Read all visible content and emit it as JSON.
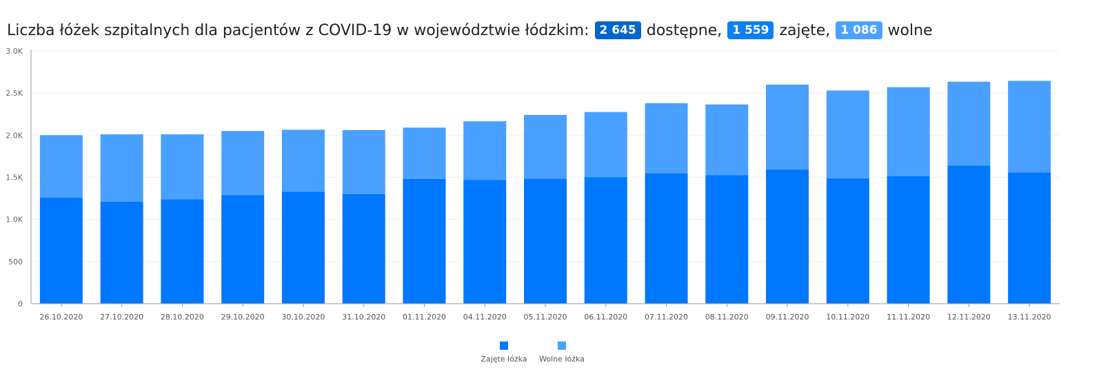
{
  "header": {
    "title_prefix": "Liczba łóżek szpitalnych dla pacjentów z COVID-19 w województwie łódzkim:",
    "available_value": "2 645",
    "available_label": "dostępne,",
    "occupied_value": "1 559",
    "occupied_label": "zajęte,",
    "free_value": "1 086",
    "free_label": "wolne"
  },
  "colors": {
    "occupied": "#0077ff",
    "free": "#49a0ff",
    "available_badge": "#0066cc",
    "occupied_badge": "#0d7ff5",
    "free_badge": "#4aa2ff"
  },
  "chart_data": {
    "type": "bar",
    "stacked": true,
    "categories": [
      "26.10.2020",
      "27.10.2020",
      "28.10.2020",
      "29.10.2020",
      "30.10.2020",
      "31.10.2020",
      "01.11.2020",
      "04.11.2020",
      "05.11.2020",
      "06.11.2020",
      "07.11.2020",
      "08.11.2020",
      "09.11.2020",
      "10.11.2020",
      "11.11.2020",
      "12.11.2020",
      "13.11.2020"
    ],
    "series": [
      {
        "name": "Zajęte łóżka",
        "color": "#0077ff",
        "values": [
          1260,
          1210,
          1240,
          1290,
          1330,
          1300,
          1480,
          1470,
          1485,
          1500,
          1545,
          1525,
          1590,
          1490,
          1515,
          1640,
          1559
        ]
      },
      {
        "name": "Wolne łóżka",
        "color": "#49a0ff",
        "values": [
          740,
          800,
          770,
          760,
          735,
          760,
          610,
          695,
          755,
          775,
          835,
          840,
          1010,
          1040,
          1055,
          995,
          1086
        ]
      }
    ],
    "y_ticks": [
      "0",
      "500",
      "1.0K",
      "1.5K",
      "2.0K",
      "2.5K",
      "3.0K"
    ],
    "ylim": [
      0,
      3000
    ],
    "grid": true,
    "legend_position": "bottom-center"
  }
}
